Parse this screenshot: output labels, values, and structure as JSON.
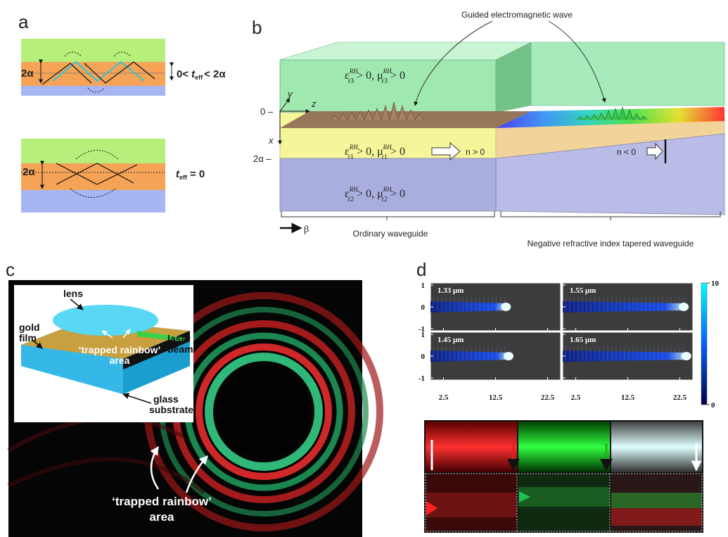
{
  "panel_a": {
    "letter": "a",
    "top": {
      "thickness": "2α",
      "condition": {
        "prefix": "0<",
        "t": "t",
        "sub": "eff",
        "suffix": "< 2α"
      }
    },
    "bottom": {
      "thickness": "2α",
      "condition": {
        "t": "t",
        "sub": "eff",
        "suffix": "= 0"
      }
    }
  },
  "panel_b": {
    "letter": "b",
    "wave_label": "Guided electromagnetic wave",
    "layer3": {
      "eps": "ε",
      "eps_sup": "RH",
      "eps_sub": "r3",
      "mid": "> 0,  μ",
      "mu_sup": "RH",
      "mu_sub": "r3",
      "end": "> 0"
    },
    "layer1": {
      "eps": "ε",
      "eps_sup": "RH",
      "eps_sub": "r1",
      "mid": "> 0,  μ",
      "mu_sup": "RH",
      "mu_sub": "r1",
      "end": "> 0"
    },
    "layer2": {
      "eps": "ε",
      "eps_sup": "RH",
      "eps_sub": "r2",
      "mid": "> 0,  μ",
      "mu_sup": "RH",
      "mu_sub": "r2",
      "end": "> 0"
    },
    "zero": "0 –",
    "two_alpha": "2α –",
    "axis_y": "y",
    "axis_z": "z",
    "axis_x": "x",
    "n_positive": "n > 0",
    "n_negative": "n < 0",
    "beta": "β",
    "ordinary": "Ordinary waveguide",
    "tapered": "Negative refractive index tapered waveguide"
  },
  "panel_c": {
    "letter": "c",
    "lens": "lens",
    "gold_film": [
      "gold",
      "film"
    ],
    "inset_area": [
      "‘trapped rainbow’",
      "area"
    ],
    "laser_beam": [
      "laser",
      "beam"
    ],
    "glass_substrate": [
      "glass",
      "substrate"
    ],
    "main_area": [
      "‘trapped rainbow’",
      "area"
    ]
  },
  "panel_d": {
    "letter": "d",
    "plots": [
      {
        "label": "1.33 μm"
      },
      {
        "label": "1.55 μm"
      },
      {
        "label": "1.45 μm"
      },
      {
        "label": "1.65 μm"
      }
    ],
    "ylim": [
      -1.1,
      1.1
    ],
    "yticks": [
      1,
      0,
      -1
    ],
    "xlim": [
      0,
      25
    ],
    "xticks": [
      2.5,
      12.5,
      22.5
    ],
    "colorbar": {
      "lim": [
        0,
        10
      ],
      "ticks": [
        10,
        0
      ]
    }
  }
}
